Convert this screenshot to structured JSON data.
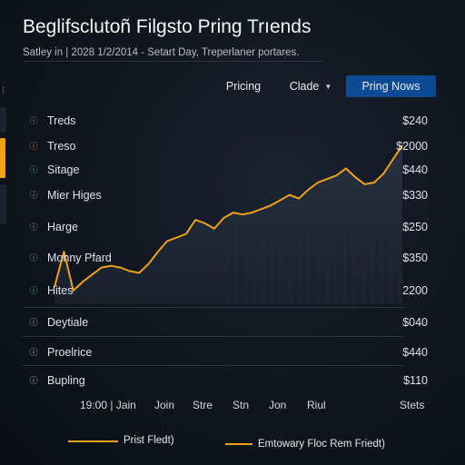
{
  "header": {
    "title": "Beglifsclutoñ Filgsto Pring Trıends",
    "subtitle": "Satley in | 2028 1/2/2014 - Setart Day, Treperlaner portares."
  },
  "toolbar": {
    "pricing_label": "Pricing",
    "clade_label": "Clade",
    "now_label": "Pring Nows"
  },
  "rows": [
    {
      "label": "Treds",
      "value": "$240",
      "icon": "info-icon",
      "color": "#6fa6e0"
    },
    {
      "label": "Treso",
      "value": "$2000",
      "icon": "info-icon",
      "color": "#e0783a"
    },
    {
      "label": "Sitage",
      "value": "$440",
      "icon": "info-icon",
      "color": "#39c0d8"
    },
    {
      "label": "Mier Higes",
      "value": "$330",
      "icon": "info-icon",
      "color": "#6fa6e0"
    },
    {
      "label": "Harge",
      "value": "$250",
      "icon": "info-icon",
      "color": "#6fa6e0"
    },
    {
      "label": "Monny Pfard",
      "value": "$350",
      "icon": "info-icon",
      "color": "#6fa6e0"
    },
    {
      "label": "Hites",
      "value": "2200",
      "icon": "info-icon",
      "color": "#3fc05a"
    },
    {
      "label": "Deytiale",
      "value": "$040",
      "icon": "info-icon",
      "color": "#c8cdd4"
    },
    {
      "label": "Proelrice",
      "value": "$440",
      "icon": "info-icon",
      "color": "#c8cdd4"
    },
    {
      "label": "Bupling",
      "value": "$110",
      "icon": "info-icon",
      "color": "#c8cdd4"
    }
  ],
  "x_labels": [
    "19:00 | Jain",
    "Join",
    "Stre",
    "Stn",
    "Jon",
    "Riul",
    "Stets"
  ],
  "legend": [
    {
      "label": "Prist Fledt)"
    },
    {
      "label": "Emtowary Floc Rem Friedt)"
    }
  ],
  "colors": {
    "accent": "#f0a11a",
    "button": "#0c4a93",
    "background": "#10151d"
  },
  "chart_data": {
    "type": "area",
    "x": [
      1,
      2,
      3,
      4,
      5,
      6,
      7,
      8,
      9,
      10,
      11,
      12,
      13,
      14,
      15,
      16,
      17,
      18,
      19,
      20,
      21,
      22,
      23,
      24,
      25,
      26,
      27,
      28,
      29,
      30,
      31,
      32,
      33,
      34,
      35,
      36,
      37,
      38
    ],
    "series": [
      {
        "name": "Prist Fledt)",
        "values": [
          2200,
          2400,
          2180,
          2230,
          2270,
          2310,
          2320,
          2310,
          2290,
          2280,
          2330,
          2400,
          2460,
          2480,
          2500,
          2580,
          2560,
          2530,
          2590,
          2620,
          2610,
          2620,
          2640,
          2660,
          2690,
          2720,
          2700,
          2750,
          2790,
          2810,
          2830,
          2870,
          2820,
          2780,
          2790,
          2840,
          2920,
          3000
        ]
      }
    ]
  }
}
